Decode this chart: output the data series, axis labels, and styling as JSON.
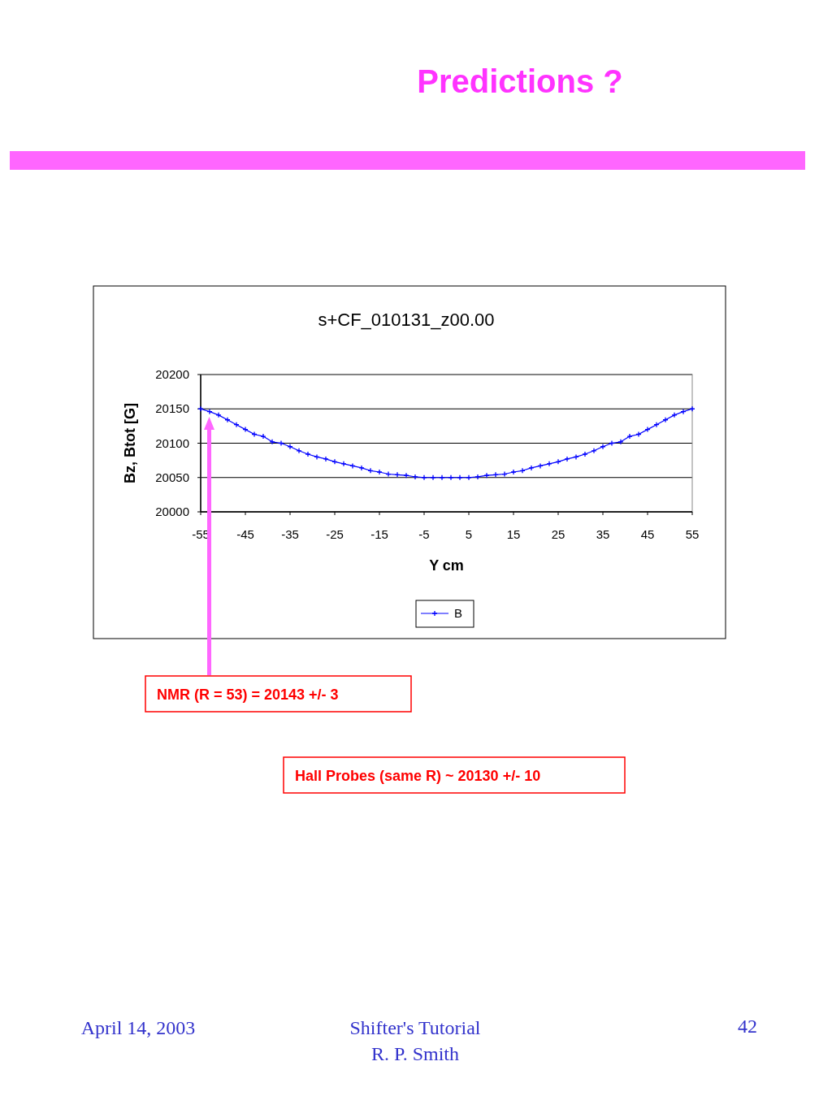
{
  "chart_data": {
    "type": "line",
    "title": "Predictions ?",
    "subtitle": "s+CF_010131_z00.00",
    "xlabel": "Y cm",
    "ylabel": "Bz, Btot [G]",
    "x": [
      -55,
      -53,
      -51,
      -49,
      -47,
      -45,
      -43,
      -41,
      -39,
      -37,
      -35,
      -33,
      -31,
      -29,
      -27,
      -25,
      -23,
      -21,
      -19,
      -17,
      -15,
      -13,
      -11,
      -9,
      -7,
      -5,
      -3,
      -1,
      1,
      3,
      5,
      7,
      9,
      11,
      13,
      15,
      17,
      19,
      21,
      23,
      25,
      27,
      29,
      31,
      33,
      35,
      37,
      39,
      41,
      43,
      45,
      47,
      49,
      51,
      53,
      55
    ],
    "series": [
      {
        "name": "B",
        "color": "#0000ff",
        "values": [
          20150,
          20146,
          20141,
          20134,
          20127,
          20120,
          20113,
          20110,
          20102,
          20100,
          20095,
          20089,
          20084,
          20080,
          20077,
          20073,
          20070,
          20067,
          20064,
          20060,
          20058,
          20055,
          20054,
          20053,
          20051,
          20050,
          20050,
          20050,
          20050,
          20050,
          20050,
          20051,
          20053,
          20054,
          20055,
          20058,
          20060,
          20064,
          20067,
          20070,
          20073,
          20077,
          20080,
          20084,
          20089,
          20095,
          20100,
          20102,
          20110,
          20113,
          20120,
          20127,
          20134,
          20141,
          20146,
          20150
        ]
      }
    ],
    "xlim": [
      -55,
      55
    ],
    "xticks": [
      -55,
      -45,
      -35,
      -25,
      -15,
      -5,
      5,
      15,
      25,
      35,
      45,
      55
    ],
    "ylim": [
      20000,
      20200
    ],
    "yticks": [
      20000,
      20050,
      20100,
      20150,
      20200
    ],
    "grid": "y",
    "legend": "bottom",
    "marker": "cross",
    "line_style": "solid",
    "annotations": [
      "NMR (R = 53) = 20143 +/- 3",
      "Hall Probes (same R) ~ 20130 +/- 10",
      "April 14, 2003",
      "Shifter's Tutorial",
      "R. P. Smith",
      "42"
    ]
  }
}
